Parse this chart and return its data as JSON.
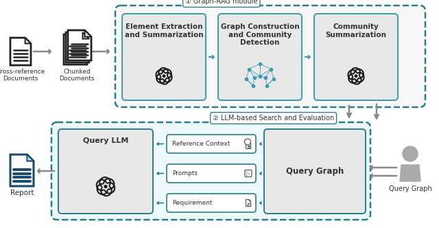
{
  "bg_color": "#ffffff",
  "teal_dark": "#2a7d8c",
  "teal_mid": "#3a9aae",
  "gray_box": "#e8e8e8",
  "gray_light_box": "#eaf4f7",
  "gray_border": "#888888",
  "white": "#ffffff",
  "text_dark": "#333333",
  "doc_blue": "#1a4a6b",
  "title1": "① Graph-RAG module",
  "title2": "② LLM-based Search and Evaluation",
  "box1_label": "Element Extraction\nand Summarization",
  "box2_label": "Graph Construction\nand Community\nDetection",
  "box3_label": "Community\nSummarization",
  "box4_label": "Query LLM",
  "box5_label": "Query Graph",
  "ref_label": "Reference Context",
  "prompts_label": "Prompts",
  "req_label": "Requirement",
  "doc1_label": "Cross-reference\nDocuments",
  "doc2_label": "Chunked\nDocuments",
  "report_label": "Report",
  "query_graph_label": "Query Graph",
  "person_color": "#aaaaaa",
  "icon_color": "#333333"
}
